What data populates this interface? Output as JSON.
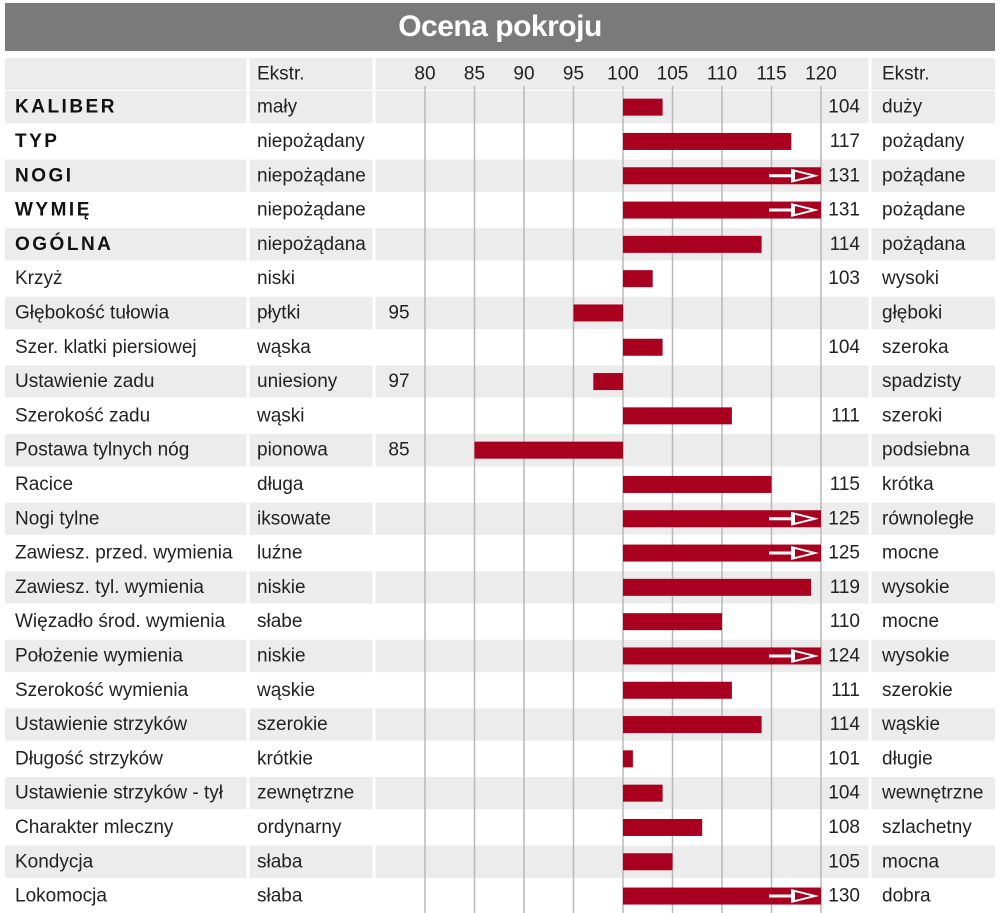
{
  "title": "Ocena pokroju",
  "chart_data": {
    "type": "bar",
    "title": "Ocena pokroju",
    "left_extreme_header": "Ekstr.",
    "right_extreme_header": "Ekstr.",
    "axis": {
      "baseline": 100,
      "xlim": [
        80,
        120
      ],
      "ticks": [
        "80",
        "85",
        "90",
        "95",
        "100",
        "105",
        "110",
        "115",
        "120"
      ],
      "tick_values": [
        80,
        85,
        90,
        95,
        100,
        105,
        110,
        115,
        120
      ]
    },
    "colors": {
      "bar": "#a8001e",
      "row_alt": "#ececec",
      "grid": "#b8b8b8"
    },
    "rows": [
      {
        "label": "KALIBER",
        "bold": true,
        "left": "mały",
        "right": "duży",
        "value": 104
      },
      {
        "label": "TYP",
        "bold": true,
        "left": "niepożądany",
        "right": "pożądany",
        "value": 117
      },
      {
        "label": "NOGI",
        "bold": true,
        "left": "niepożądane",
        "right": "pożądane",
        "value": 131
      },
      {
        "label": "WYMIĘ",
        "bold": true,
        "left": "niepożądane",
        "right": "pożądane",
        "value": 131
      },
      {
        "label": "OGÓLNA",
        "bold": true,
        "left": "niepożądana",
        "right": "pożądana",
        "value": 114
      },
      {
        "label": "Krzyż",
        "bold": false,
        "left": "niski",
        "right": "wysoki",
        "value": 103
      },
      {
        "label": "Głębokość tułowia",
        "bold": false,
        "left": "płytki",
        "right": "głęboki",
        "value": 95
      },
      {
        "label": "Szer. klatki piersiowej",
        "bold": false,
        "left": "wąska",
        "right": "szeroka",
        "value": 104
      },
      {
        "label": "Ustawienie zadu",
        "bold": false,
        "left": "uniesiony",
        "right": "spadzisty",
        "value": 97
      },
      {
        "label": "Szerokość zadu",
        "bold": false,
        "left": "wąski",
        "right": "szeroki",
        "value": 111
      },
      {
        "label": "Postawa tylnych nóg",
        "bold": false,
        "left": "pionowa",
        "right": "podsiebna",
        "value": 85
      },
      {
        "label": "Racice",
        "bold": false,
        "left": "długa",
        "right": "krótka",
        "value": 115
      },
      {
        "label": "Nogi tylne",
        "bold": false,
        "left": "iksowate",
        "right": "równoległe",
        "value": 125
      },
      {
        "label": "Zawiesz. przed. wymienia",
        "bold": false,
        "left": "luźne",
        "right": "mocne",
        "value": 125
      },
      {
        "label": "Zawiesz. tyl. wymienia",
        "bold": false,
        "left": "niskie",
        "right": "wysokie",
        "value": 119
      },
      {
        "label": "Więzadło środ. wymienia",
        "bold": false,
        "left": "słabe",
        "right": "mocne",
        "value": 110
      },
      {
        "label": "Położenie wymienia",
        "bold": false,
        "left": "niskie",
        "right": "wysokie",
        "value": 124
      },
      {
        "label": "Szerokość wymienia",
        "bold": false,
        "left": "wąskie",
        "right": "szerokie",
        "value": 111
      },
      {
        "label": "Ustawienie strzyków",
        "bold": false,
        "left": "szerokie",
        "right": "wąskie",
        "value": 114
      },
      {
        "label": "Długość strzyków",
        "bold": false,
        "left": "krótkie",
        "right": "długie",
        "value": 101
      },
      {
        "label": "Ustawienie strzyków - tył",
        "bold": false,
        "left": "zewnętrzne",
        "right": "wewnętrzne",
        "value": 104
      },
      {
        "label": "Charakter mleczny",
        "bold": false,
        "left": "ordynarny",
        "right": "szlachetny",
        "value": 108
      },
      {
        "label": "Kondycja",
        "bold": false,
        "left": "słaba",
        "right": "mocna",
        "value": 105
      },
      {
        "label": "Lokomocja",
        "bold": false,
        "left": "słaba",
        "right": "dobra",
        "value": 130
      }
    ]
  }
}
